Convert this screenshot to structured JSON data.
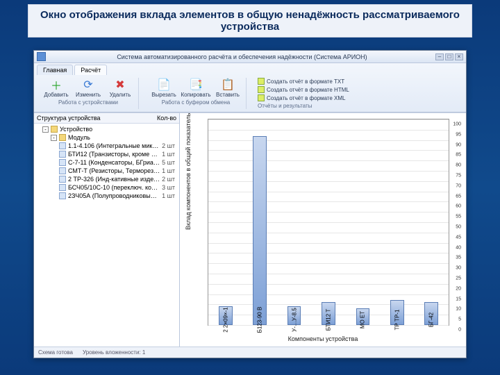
{
  "slide_title": "Окно отображения вклада элементов в общую ненадёжность рассматриваемого устройства",
  "window": {
    "title": "Система автоматизированного расчёта и обеспечения надёжности (Система АРИОН)",
    "min": "–",
    "max": "□",
    "close": "×"
  },
  "tabs": [
    "Главная",
    "Расчёт"
  ],
  "active_tab": 1,
  "ribbon": {
    "group1": {
      "label": "Работа с устройствами",
      "buttons": [
        {
          "glyph": "＋",
          "color": "#28a428",
          "label": "Добавить"
        },
        {
          "glyph": "⟳",
          "color": "#3a7ad4",
          "label": "Изменить"
        },
        {
          "glyph": "✖",
          "color": "#d43a3a",
          "label": "Удалить"
        }
      ]
    },
    "group2": {
      "label": "Работа с буфером обмена",
      "buttons": [
        {
          "glyph": "📄",
          "color": "#777",
          "label": "Вырезать"
        },
        {
          "glyph": "📑",
          "color": "#777",
          "label": "Копировать"
        },
        {
          "glyph": "📋",
          "color": "#777",
          "label": "Вставить"
        }
      ]
    },
    "group3": {
      "label": "Отчёты и результаты",
      "items": [
        "Создать отчёт в формате TXT",
        "Создать отчёт в формате HTML",
        "Создать отчёт в формате XML"
      ]
    }
  },
  "sidebar": {
    "heading": "Структура устройства",
    "count_heading": "Кол-во",
    "root": "Устройство",
    "module": "Модуль",
    "items": [
      {
        "label": "1.1-4.106 (Интегральные микрос…",
        "count": "2 шт"
      },
      {
        "label": "БТИ12 (Транзисторы, кроме интег…",
        "count": "1 шт"
      },
      {
        "label": "С-7-11 (Конденсаторы, БГриал-)…",
        "count": "5 шт"
      },
      {
        "label": "СМТ-Т (Резисторы, Терморезист-)…",
        "count": "1 шт"
      },
      {
        "label": "2 ТР-326 (Инд-кативные издел…",
        "count": "2 шт"
      },
      {
        "label": "БСЧ05/10С-10 (переключ. комир…",
        "count": "3 шт"
      },
      {
        "label": "2ЗЧ05А (Полупроводниковые приб…",
        "count": "1 шт"
      }
    ]
  },
  "chart": {
    "type": "bar",
    "ylabel": "Вклад компонентов в общий показатель надёжности",
    "xlabel": "Компоненты устройства",
    "ylim": [
      0,
      100
    ],
    "ytick_step": 5,
    "background_color": "#ffffff",
    "grid_color": "#e6e6e6",
    "bar_color_top": "#c8d7ef",
    "bar_color_bottom": "#7da0d6",
    "bar_border": "#5a7db5",
    "bars": [
      {
        "label": "2 2×09×-1",
        "value": 9
      },
      {
        "label": "Б123-90 В",
        "value": 92
      },
      {
        "label": "У-…У-8.5",
        "value": 9
      },
      {
        "label": "БТИ12 Т",
        "value": 11
      },
      {
        "label": "МО ЕТ",
        "value": 8
      },
      {
        "label": "ТР ТР-1",
        "value": 12
      },
      {
        "label": "БГ-42",
        "value": 11
      }
    ]
  },
  "statusbar": {
    "a": "Схема готова",
    "b": "Уровень вложенности: 1"
  }
}
